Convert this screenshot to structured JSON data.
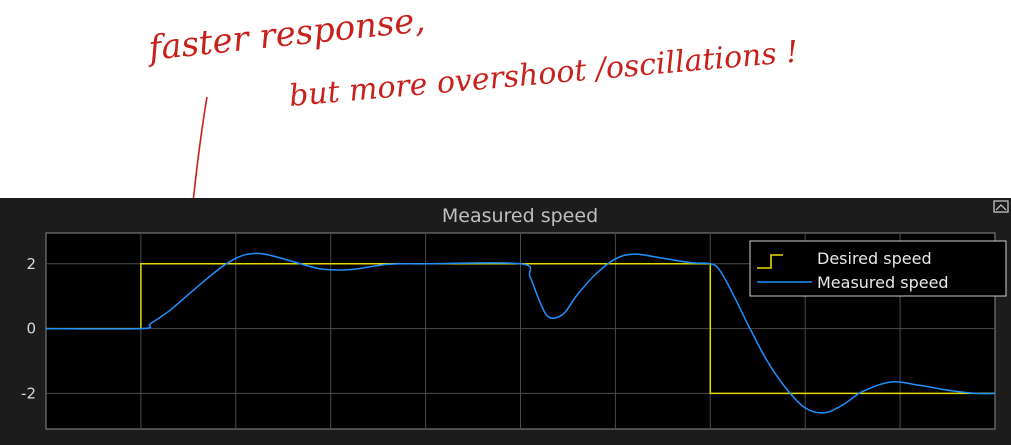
{
  "annotation": {
    "line1": "faster response,",
    "line2": "but more overshoot /oscillations !",
    "color": "#c8201a"
  },
  "colors": {
    "figure_background": "#1c1c1c",
    "plot_background": "#000000",
    "grid": "#4a4a4a",
    "desired": "#e6d800",
    "measured": "#1e90ff"
  },
  "chart_data": {
    "type": "line",
    "title": "Measured speed",
    "xlabel": "",
    "ylabel": "",
    "xlim": [
      0,
      10
    ],
    "ylim": [
      -3.1,
      2.95
    ],
    "yticks": [
      2,
      0,
      -2
    ],
    "ytick_labels": [
      "2",
      "0",
      "-2"
    ],
    "xticks": [
      1,
      2,
      3,
      4,
      5,
      6,
      7,
      8,
      9
    ],
    "grid": true,
    "legend_position": "top-right",
    "series": [
      {
        "name": "Desired speed",
        "color": "#e6d800",
        "x": [
          0,
          1.0,
          1.0,
          7.0,
          7.0,
          10
        ],
        "y": [
          0,
          0,
          2,
          2,
          -2,
          -2
        ]
      },
      {
        "name": "Measured speed",
        "color": "#1e90ff",
        "x": [
          0,
          1.0,
          1.1,
          1.3,
          1.5,
          1.7,
          1.9,
          2.1,
          2.3,
          2.6,
          2.9,
          3.2,
          3.6,
          4.0,
          5.0,
          5.1,
          5.2,
          5.3,
          5.45,
          5.6,
          5.8,
          6.0,
          6.2,
          6.5,
          6.8,
          7.0,
          7.1,
          7.25,
          7.4,
          7.6,
          7.8,
          8.0,
          8.2,
          8.4,
          8.6,
          8.9,
          9.2,
          9.5,
          9.8,
          10
        ],
        "y": [
          0,
          0,
          0.15,
          0.55,
          1.05,
          1.55,
          2.0,
          2.28,
          2.3,
          2.07,
          1.84,
          1.82,
          1.98,
          2.0,
          2.0,
          1.6,
          0.85,
          0.35,
          0.45,
          1.05,
          1.7,
          2.15,
          2.3,
          2.17,
          2.03,
          2.0,
          1.8,
          1.0,
          0.1,
          -1.0,
          -1.85,
          -2.45,
          -2.6,
          -2.35,
          -1.95,
          -1.65,
          -1.75,
          -1.9,
          -2.0,
          -2.0
        ]
      }
    ]
  }
}
